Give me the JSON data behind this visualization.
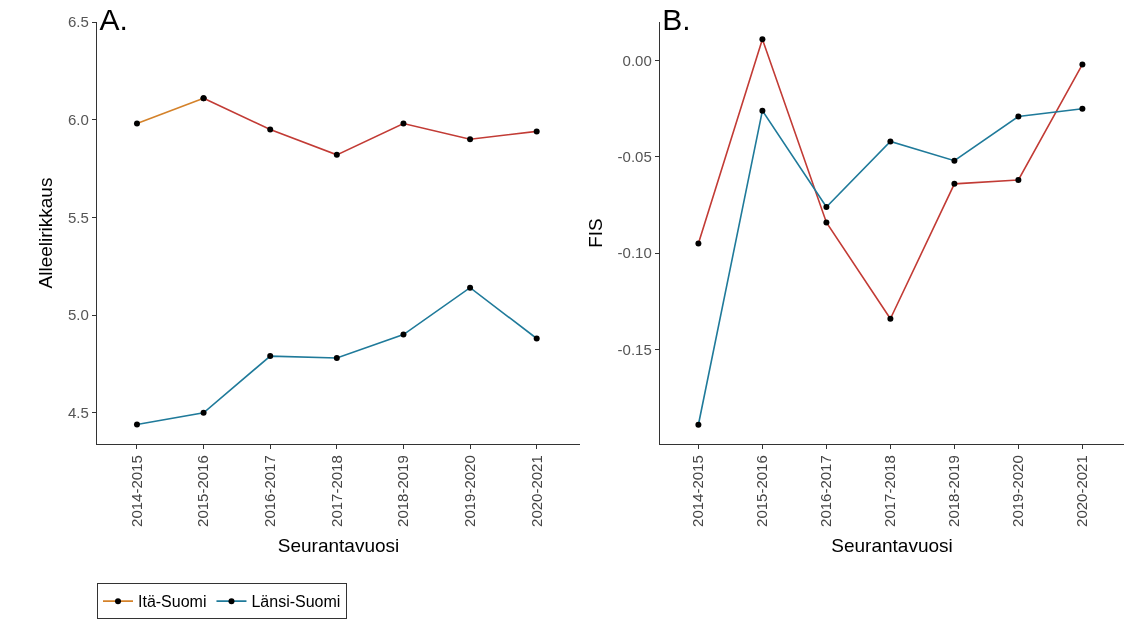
{
  "chart_data": [
    {
      "type": "line",
      "title": "A.",
      "xlabel": "Seurantavuosi",
      "ylabel": "Alleelirikkaus",
      "categories": [
        "2014-2015",
        "2015-2016",
        "2016-2017",
        "2017-2018",
        "2018-2019",
        "2019-2020",
        "2020-2021"
      ],
      "ylim": [
        4.34,
        6.5
      ],
      "yticks": [
        4.5,
        {
          "value": 5,
          "label": "5.0"
        },
        5.5,
        {
          "value": 6,
          "label": "6.0"
        },
        6.5
      ],
      "grid": false,
      "legend": "bottom left",
      "marker": "circle",
      "line_style": "solid",
      "series": [
        {
          "name": "Itä-Suomi",
          "color": "#d4822a",
          "values": [
            5.98,
            6.11,
            null,
            null,
            null,
            null,
            null
          ]
        },
        {
          "color": "#c23b35",
          "values": [
            null,
            6.11,
            5.95,
            5.82,
            5.98,
            5.9,
            5.94
          ]
        },
        {
          "name": "Länsi-Suomi",
          "color": "#1f7a9a",
          "values": [
            4.44,
            4.5,
            4.79,
            4.78,
            4.9,
            5.14,
            4.88
          ]
        }
      ]
    },
    {
      "type": "line",
      "title": "B.",
      "xlabel": "Seurantavuosi",
      "ylabel": "FIS",
      "categories": [
        "2014-2015",
        "2015-2016",
        "2016-2017",
        "2017-2018",
        "2018-2019",
        "2019-2020",
        "2020-2021"
      ],
      "ylim": [
        -0.199,
        0.02
      ],
      "yticks": [
        {
          "value": -0.15,
          "label": "-0.15"
        },
        {
          "value": -0.1,
          "label": "-0.10"
        },
        {
          "value": -0.05,
          "label": "-0.05"
        },
        {
          "value": 0,
          "label": "0.00"
        }
      ],
      "grid": false,
      "legend": false,
      "marker": "circle",
      "line_style": "solid",
      "series": [
        {
          "color": "#c23b35",
          "values": [
            -0.095,
            0.011,
            -0.084,
            -0.134,
            -0.064,
            -0.062,
            -0.002
          ]
        },
        {
          "color": "#1f7a9a",
          "values": [
            -0.189,
            -0.026,
            -0.076,
            -0.042,
            -0.052,
            -0.029,
            -0.025
          ]
        }
      ]
    }
  ]
}
